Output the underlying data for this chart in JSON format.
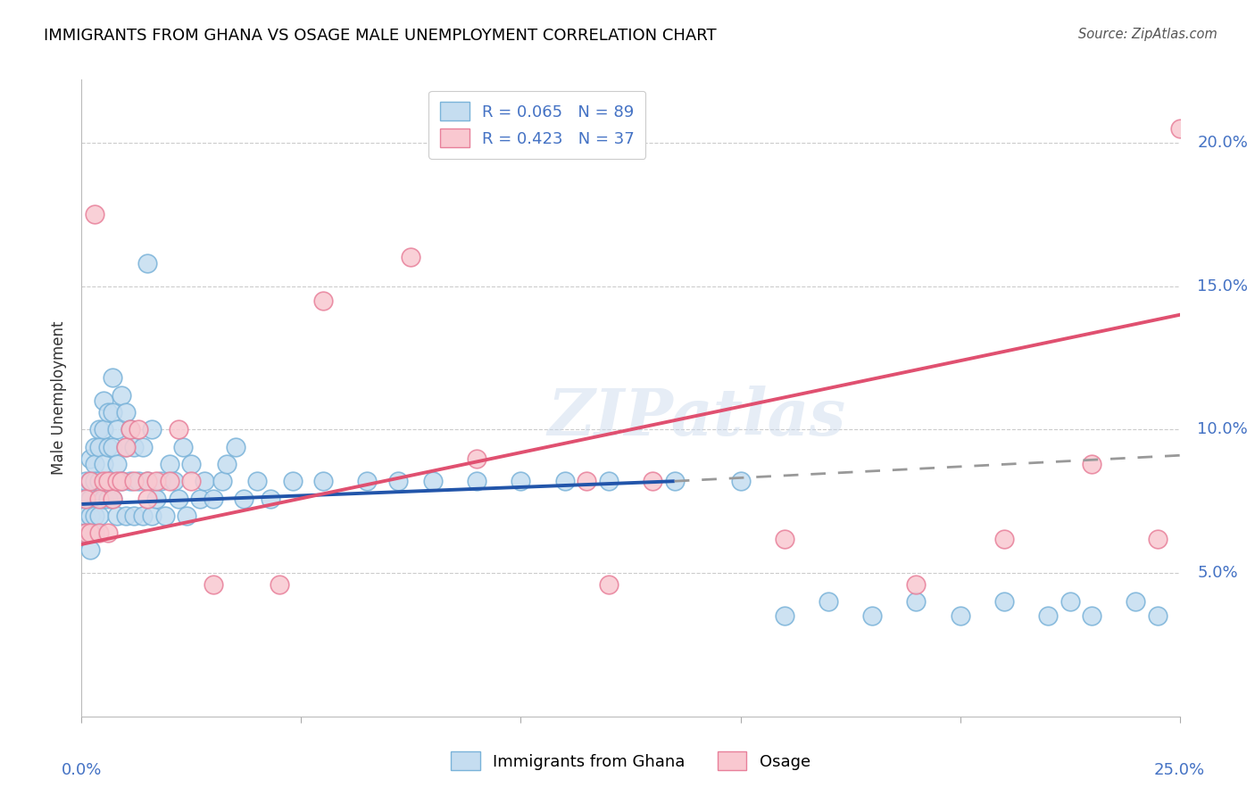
{
  "title": "IMMIGRANTS FROM GHANA VS OSAGE MALE UNEMPLOYMENT CORRELATION CHART",
  "source": "Source: ZipAtlas.com",
  "ylabel": "Male Unemployment",
  "xmin": 0.0,
  "xmax": 0.25,
  "ymin": 0.0,
  "ymax": 0.222,
  "yticks": [
    0.05,
    0.1,
    0.15,
    0.2
  ],
  "ytick_labels": [
    "5.0%",
    "10.0%",
    "15.0%",
    "20.0%"
  ],
  "color_blue_face": "#c5ddf0",
  "color_blue_edge": "#7ab3d9",
  "color_pink_face": "#f9c8d0",
  "color_pink_edge": "#e8809a",
  "trendline_blue": "#2255aa",
  "trendline_pink": "#e05070",
  "trendline_grey": "#999999",
  "r1": "0.065",
  "n1": "89",
  "r2": "0.423",
  "n2": "37",
  "label1": "Immigrants from Ghana",
  "label2": "Osage",
  "watermark": "ZIPatlas",
  "ghana_trend_y0": 0.074,
  "ghana_trend_y_at_solid_end": 0.082,
  "ghana_trend_solid_end_x": 0.135,
  "ghana_trend_dashed_end_x": 0.25,
  "ghana_trend_dashed_end_y": 0.091,
  "osage_trend_x0": 0.0,
  "osage_trend_x1": 0.25,
  "osage_trend_y0": 0.06,
  "osage_trend_y1": 0.14,
  "ghana_x": [
    0.001,
    0.001,
    0.001,
    0.001,
    0.002,
    0.002,
    0.002,
    0.002,
    0.002,
    0.002,
    0.003,
    0.003,
    0.003,
    0.003,
    0.003,
    0.004,
    0.004,
    0.004,
    0.004,
    0.005,
    0.005,
    0.005,
    0.005,
    0.006,
    0.006,
    0.006,
    0.007,
    0.007,
    0.007,
    0.007,
    0.008,
    0.008,
    0.008,
    0.009,
    0.009,
    0.01,
    0.01,
    0.01,
    0.011,
    0.011,
    0.012,
    0.012,
    0.013,
    0.014,
    0.014,
    0.015,
    0.015,
    0.016,
    0.016,
    0.017,
    0.018,
    0.019,
    0.02,
    0.021,
    0.022,
    0.023,
    0.024,
    0.025,
    0.027,
    0.028,
    0.03,
    0.032,
    0.033,
    0.035,
    0.037,
    0.04,
    0.043,
    0.048,
    0.055,
    0.065,
    0.072,
    0.08,
    0.09,
    0.1,
    0.11,
    0.12,
    0.135,
    0.15,
    0.16,
    0.17,
    0.18,
    0.19,
    0.2,
    0.21,
    0.22,
    0.225,
    0.23,
    0.24,
    0.245
  ],
  "ghana_y": [
    0.082,
    0.076,
    0.07,
    0.064,
    0.09,
    0.082,
    0.076,
    0.07,
    0.064,
    0.058,
    0.094,
    0.088,
    0.082,
    0.07,
    0.064,
    0.1,
    0.094,
    0.082,
    0.07,
    0.11,
    0.1,
    0.088,
    0.076,
    0.106,
    0.094,
    0.076,
    0.118,
    0.106,
    0.094,
    0.076,
    0.1,
    0.088,
    0.07,
    0.112,
    0.082,
    0.106,
    0.094,
    0.07,
    0.1,
    0.082,
    0.094,
    0.07,
    0.082,
    0.094,
    0.07,
    0.158,
    0.082,
    0.1,
    0.07,
    0.076,
    0.082,
    0.07,
    0.088,
    0.082,
    0.076,
    0.094,
    0.07,
    0.088,
    0.076,
    0.082,
    0.076,
    0.082,
    0.088,
    0.094,
    0.076,
    0.082,
    0.076,
    0.082,
    0.082,
    0.082,
    0.082,
    0.082,
    0.082,
    0.082,
    0.082,
    0.082,
    0.082,
    0.082,
    0.035,
    0.04,
    0.035,
    0.04,
    0.035,
    0.04,
    0.035,
    0.04,
    0.035,
    0.04,
    0.035
  ],
  "osage_x": [
    0.001,
    0.001,
    0.002,
    0.002,
    0.003,
    0.004,
    0.004,
    0.005,
    0.006,
    0.006,
    0.007,
    0.008,
    0.009,
    0.01,
    0.011,
    0.012,
    0.013,
    0.015,
    0.017,
    0.02,
    0.022,
    0.025,
    0.055,
    0.075,
    0.09,
    0.115,
    0.13,
    0.16,
    0.19,
    0.21,
    0.23,
    0.245,
    0.25,
    0.015,
    0.03,
    0.045,
    0.12
  ],
  "osage_y": [
    0.076,
    0.064,
    0.082,
    0.064,
    0.175,
    0.076,
    0.064,
    0.082,
    0.082,
    0.064,
    0.076,
    0.082,
    0.082,
    0.094,
    0.1,
    0.082,
    0.1,
    0.082,
    0.082,
    0.082,
    0.1,
    0.082,
    0.145,
    0.16,
    0.09,
    0.082,
    0.082,
    0.062,
    0.046,
    0.062,
    0.088,
    0.062,
    0.205,
    0.076,
    0.046,
    0.046,
    0.046
  ]
}
